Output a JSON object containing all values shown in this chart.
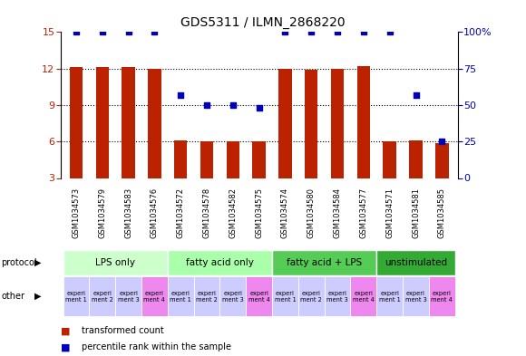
{
  "title": "GDS5311 / ILMN_2868220",
  "samples": [
    "GSM1034573",
    "GSM1034579",
    "GSM1034583",
    "GSM1034576",
    "GSM1034572",
    "GSM1034578",
    "GSM1034582",
    "GSM1034575",
    "GSM1034574",
    "GSM1034580",
    "GSM1034584",
    "GSM1034577",
    "GSM1034571",
    "GSM1034581",
    "GSM1034585"
  ],
  "red_bars": [
    12.1,
    12.1,
    12.1,
    12.0,
    6.1,
    6.0,
    6.0,
    6.0,
    12.0,
    11.9,
    12.0,
    12.2,
    6.0,
    6.1,
    5.9
  ],
  "blue_dots": [
    100,
    100,
    100,
    100,
    57,
    50,
    50,
    48,
    100,
    100,
    100,
    100,
    100,
    57,
    25
  ],
  "ylim_left": [
    3,
    15
  ],
  "ylim_right": [
    0,
    100
  ],
  "yticks_left": [
    3,
    6,
    9,
    12,
    15
  ],
  "yticks_right": [
    0,
    25,
    50,
    75,
    100
  ],
  "ytick_right_labels": [
    "0",
    "25",
    "50",
    "75",
    "100%"
  ],
  "hgrid_lines": [
    6,
    9,
    12
  ],
  "prot_labels": [
    "LPS only",
    "fatty acid only",
    "fatty acid + LPS",
    "unstimulated"
  ],
  "prot_starts": [
    0,
    4,
    8,
    12
  ],
  "prot_ends": [
    4,
    8,
    12,
    15
  ],
  "prot_colors": [
    "#ccffcc",
    "#aaffaa",
    "#55cc55",
    "#33aa33"
  ],
  "other_labels": [
    "experi\nment 1",
    "experi\nment 2",
    "experi\nment 3",
    "experi\nment 4",
    "experi\nment 1",
    "experi\nment 2",
    "experi\nment 3",
    "experi\nment 4",
    "experi\nment 1",
    "experi\nment 2",
    "experi\nment 3",
    "experi\nment 4",
    "experi\nment 1",
    "experi\nment 3",
    "experi\nment 4"
  ],
  "other_colors": [
    "#ccccff",
    "#ccccff",
    "#ccccff",
    "#ee88ee",
    "#ccccff",
    "#ccccff",
    "#ccccff",
    "#ee88ee",
    "#ccccff",
    "#ccccff",
    "#ccccff",
    "#ee88ee",
    "#ccccff",
    "#ccccff",
    "#ee88ee"
  ],
  "bar_color": "#bb2200",
  "dot_color": "#0000bb",
  "bg_color": "#ffffff",
  "sample_bg": "#cccccc",
  "bar_bottom": 3,
  "bar_width": 0.5,
  "dot_size": 16
}
